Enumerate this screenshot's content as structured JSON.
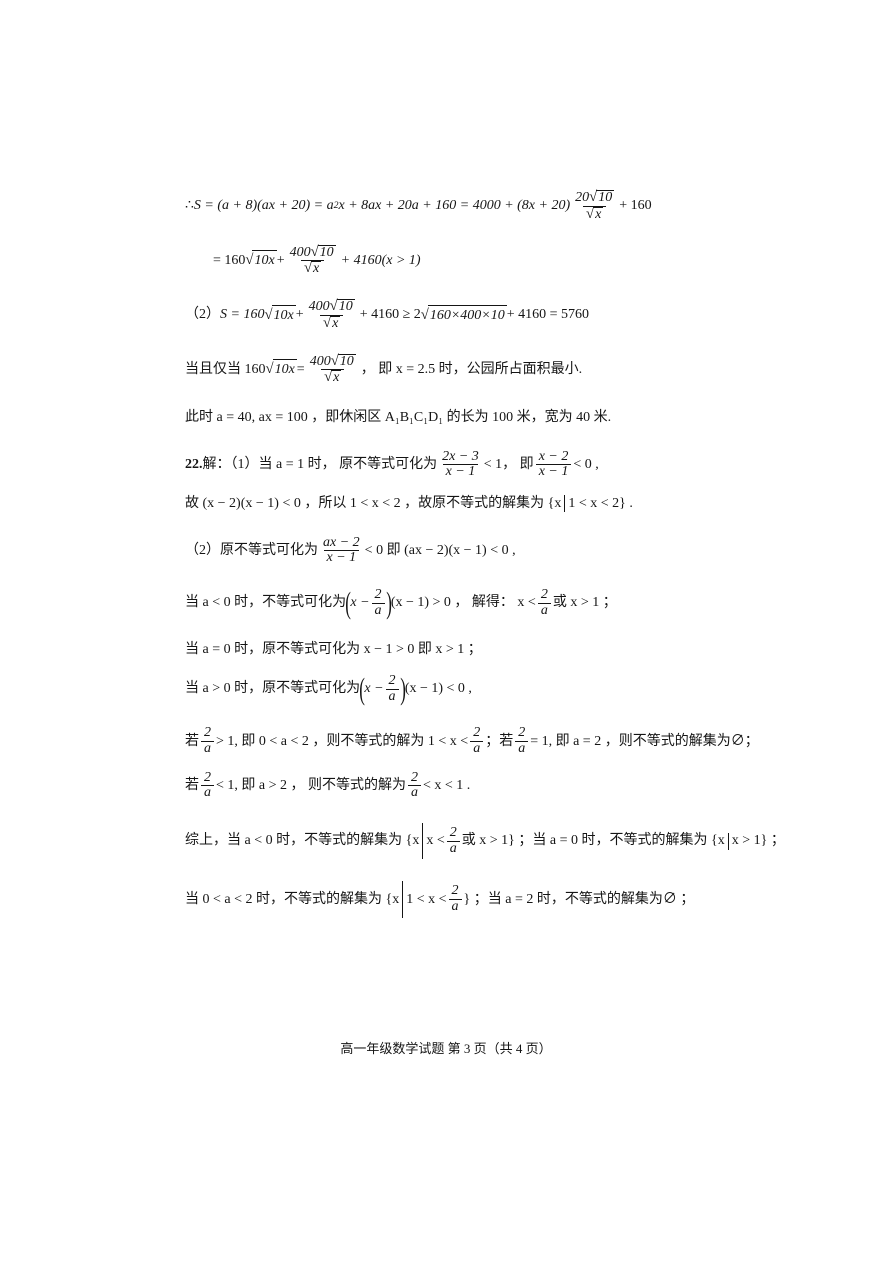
{
  "colors": {
    "text": "#151515",
    "background": "#ffffff"
  },
  "typography": {
    "body_fontsize": 14,
    "footer_fontsize": 13,
    "font_family_cjk": "SimSun",
    "font_family_math": "Times New Roman"
  },
  "lines": {
    "l1a": "∴ ",
    "l1b": " + 160",
    "eq1_lhs": "S = (a + 8)(ax + 20) = a",
    "eq1_sup": "2",
    "eq1_mid": "x + 8ax + 20a + 160 = 4000 + (8x + 20)",
    "f1_num": "20",
    "f1_num_rad": "10",
    "f1_den_rad": "x",
    "l2a": "= 160",
    "l2_rad1": "10x",
    "l2b": " + ",
    "f2_num": "400",
    "f2_num_rad": "10",
    "f2_den_rad": "x",
    "l2c": " + 4160(x > 1)",
    "l3a": "（2） ",
    "l3_expr": "S = 160",
    "l3_rad1": "10x",
    "l3b": " + ",
    "f3_num": "400",
    "f3_num_rad": "10",
    "f3_den_rad": "x",
    "l3c": " + 4160 ≥ 2",
    "l3_rad2": "160×400×10",
    "l3d": " + 4160 = 5760",
    "l4a": "当且仅当 160",
    "l4_rad": "10x",
    "l4b": " = ",
    "f4_num": "400",
    "f4_num_rad": "10",
    "f4_den_rad": "x",
    "l4c": "， 即 x = 2.5 时，公园所占面积最小.",
    "l5": "此时 a = 40, ax = 100 ，即休闲区 A₁B₁C₁D₁ 的长为 100 米，宽为 40 米.",
    "l6a": "22.",
    "l6b": "解：（1）当 a = 1 时， 原不等式可化为",
    "f6a_num": "2x − 3",
    "f6a_den": "x − 1",
    "l6c": " < 1，  即 ",
    "f6b_num": "x − 2",
    "f6b_den": "x − 1",
    "l6d": " < 0 ,",
    "l7a": "故 (x − 2)(x − 1) < 0 ，所以 1 < x < 2 ，故原不等式的解集为 {x",
    "l7b": "1 < x < 2} .",
    "l8a": "（2）原不等式可化为",
    "f8_num": "ax − 2",
    "f8_den": "x − 1",
    "l8b": " < 0 即 (ax − 2)(x − 1) < 0 ,",
    "l9a": "当 a < 0 时，不等式可化为",
    "f9_num": "2",
    "f9_den": "a",
    "l9b": "(x − 1) > 0 ， 解得：  x < ",
    "l9c": " 或 x > 1 ；",
    "l10": "当 a = 0 时，原不等式可化为 x − 1 > 0 即 x > 1 ；",
    "l11a": "当 a > 0 时，原不等式可化为",
    "l11b": "(x − 1) < 0 ,",
    "l12a": "若 ",
    "l12b": " > 1, 即 0 < a < 2 ，则不等式的解为 1 < x < ",
    "l12c": " ；若 ",
    "l12d": " = 1, 即 a = 2 ，则不等式的解集为∅；",
    "l13a": "若 ",
    "l13b": " < 1, 即 a > 2 ， 则不等式的解为",
    "l13c": " < x < 1 .",
    "l14a": "综上，当 a < 0 时，不等式的解集为 {x",
    "l14b": "x < ",
    "l14c": " 或 x > 1} ；当 a = 0 时，不等式的解集为 {x",
    "l14d": "x > 1} ；",
    "l15a": "当 0 < a < 2 时，不等式的解集为 {x",
    "l15b": "1 < x < ",
    "l15c": "} ；当 a = 2 时，不等式的解集为∅ ；",
    "frac2a": {
      "num": "2",
      "den": "a"
    },
    "footer": "高一年级数学试题    第 3 页（共 4 页）"
  }
}
